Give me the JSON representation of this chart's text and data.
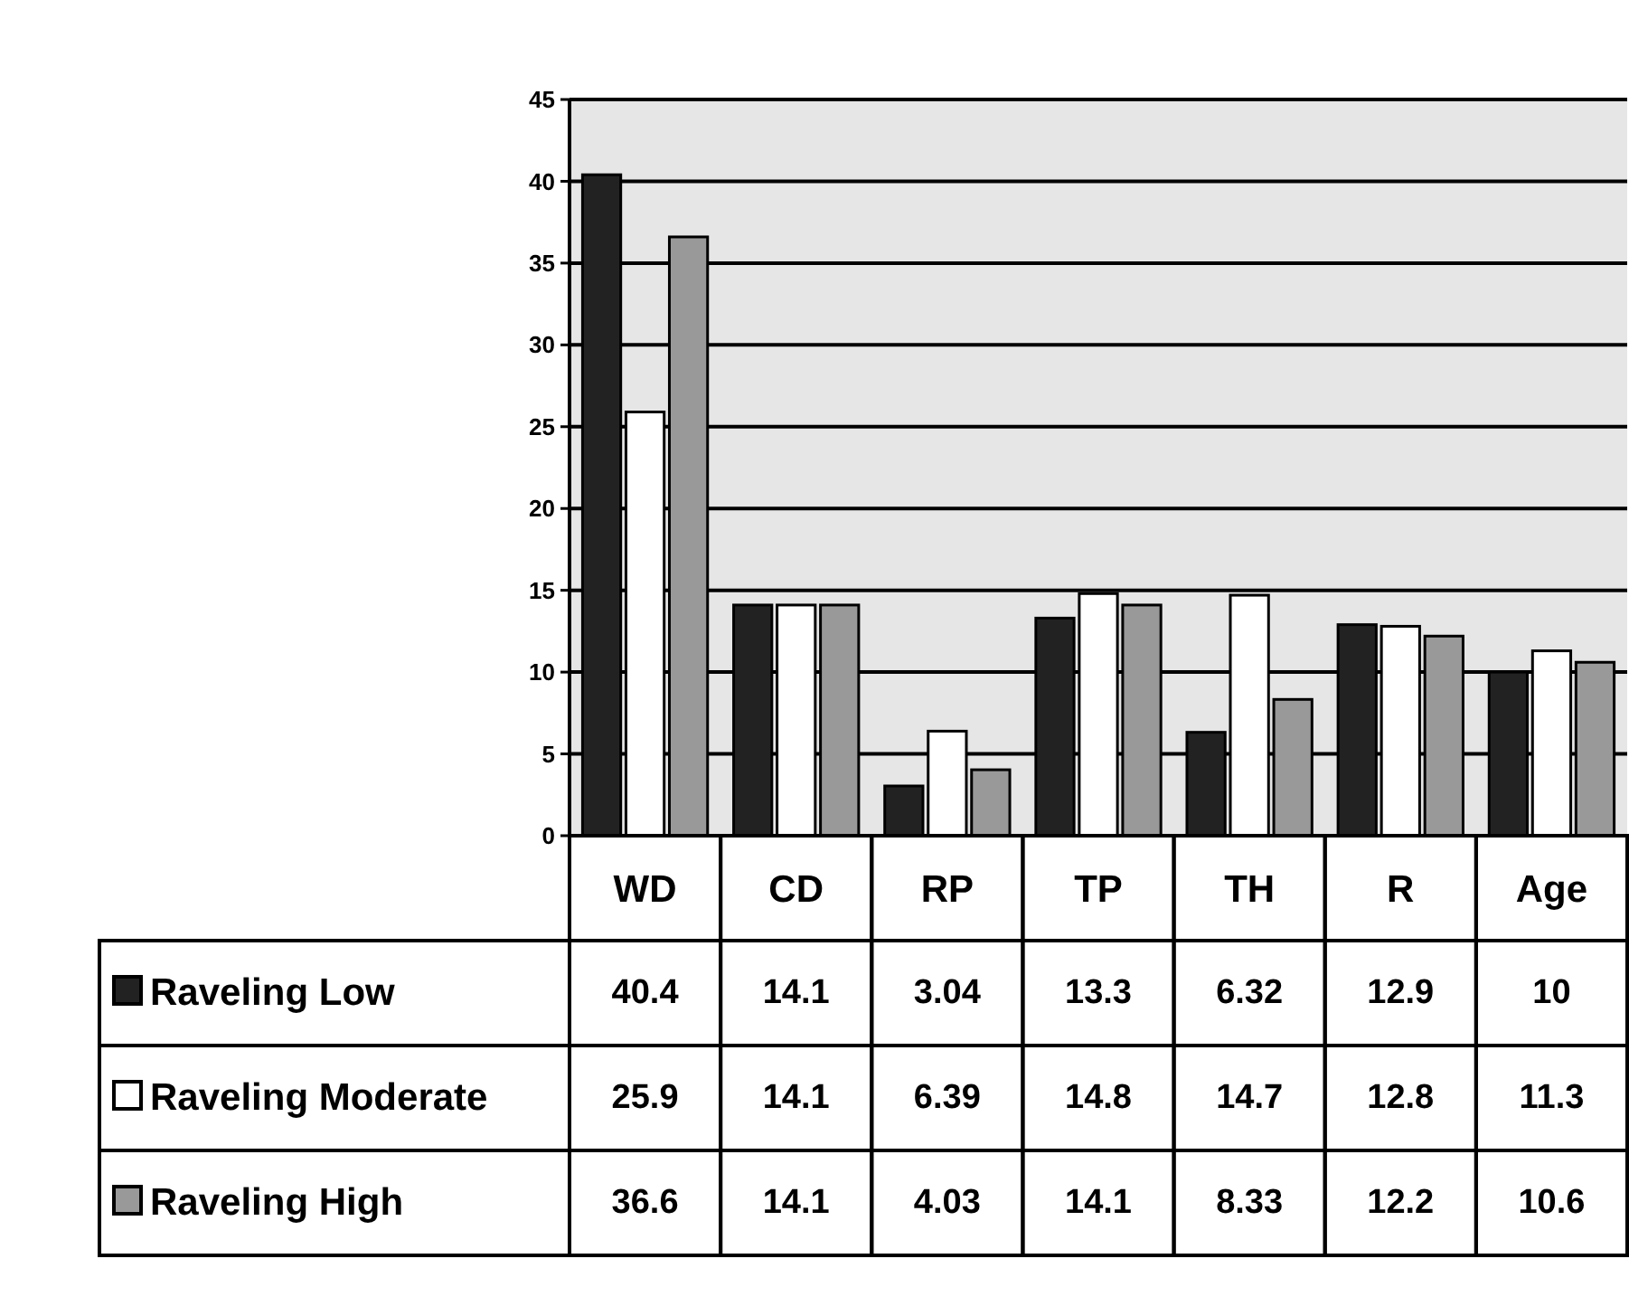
{
  "chart_data": {
    "type": "bar",
    "categories": [
      "WD",
      "CD",
      "RP",
      "TP",
      "TH",
      "R",
      "Age"
    ],
    "series": [
      {
        "name": "Raveling Low",
        "color": "#222222",
        "values": [
          40.4,
          14.1,
          3.04,
          13.3,
          6.32,
          12.9,
          10
        ]
      },
      {
        "name": "Raveling Moderate",
        "color": "#ffffff",
        "values": [
          25.9,
          14.1,
          6.39,
          14.8,
          14.7,
          12.8,
          11.3
        ]
      },
      {
        "name": "Raveling High",
        "color": "#999999",
        "values": [
          36.6,
          14.1,
          4.03,
          14.1,
          8.33,
          12.2,
          10.6
        ]
      }
    ],
    "ylim": [
      0,
      45
    ],
    "yticks": [
      0,
      5,
      10,
      15,
      20,
      25,
      30,
      35,
      40,
      45
    ],
    "grid": "y",
    "data_labels": true,
    "legend": "bottom left"
  }
}
